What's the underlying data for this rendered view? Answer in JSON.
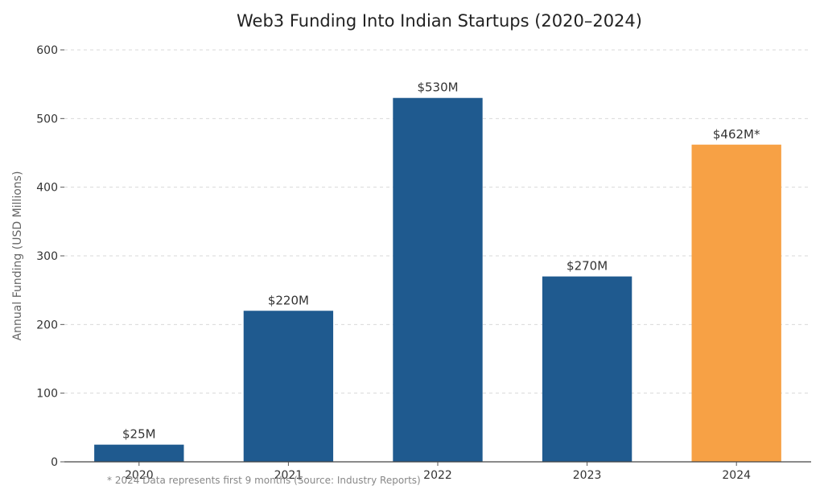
{
  "chart_data": {
    "type": "bar",
    "title": "Web3 Funding Into Indian Startups (2020–2024)",
    "xlabel": "",
    "ylabel": "Annual Funding (USD Millions)",
    "categories": [
      "2020",
      "2021",
      "2022",
      "2023",
      "2024"
    ],
    "values": [
      25,
      220,
      530,
      270,
      462
    ],
    "data_labels": [
      "$25M",
      "$220M",
      "$530M",
      "$270M",
      "$462M*"
    ],
    "ylim": [
      0,
      600
    ],
    "yticks": [
      0,
      100,
      200,
      300,
      400,
      500,
      600
    ],
    "ytick_labels": [
      "0",
      "100",
      "200",
      "300",
      "400",
      "500",
      "600"
    ],
    "grid": true,
    "legend": "none",
    "bar_colors": [
      "#1f5a8f",
      "#1f5a8f",
      "#1f5a8f",
      "#1f5a8f",
      "#f7a145"
    ],
    "footnote": "* 2024 Data represents first 9 months (Source: Industry Reports)"
  }
}
